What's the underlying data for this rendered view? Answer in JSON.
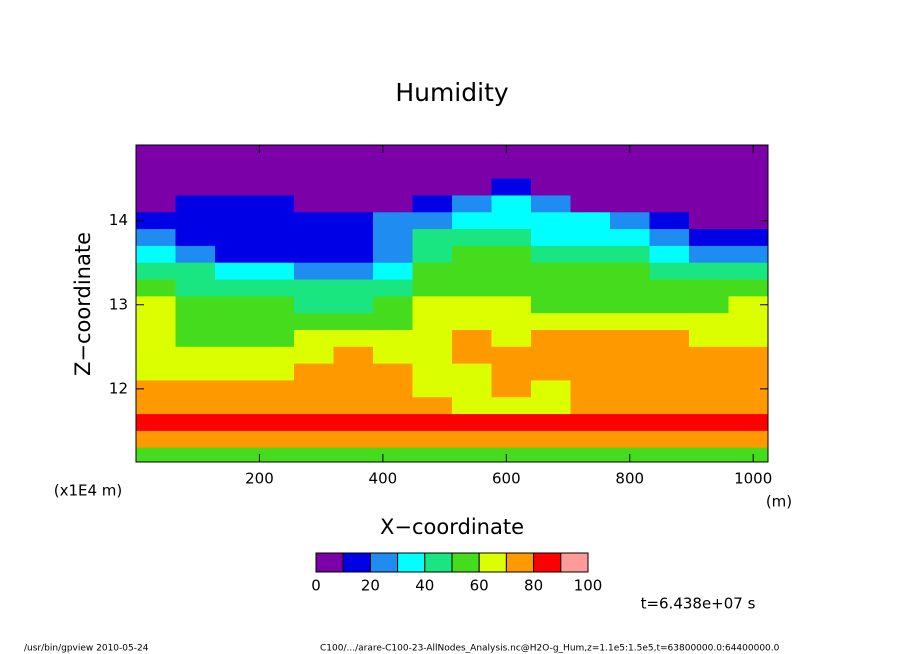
{
  "chart_data": {
    "type": "contour",
    "title": "Humidity",
    "x_label": "X−coordinate",
    "y_label": "Z−coordinate",
    "y_unit": "(x1E4 m)",
    "x_unit": "(m)",
    "time_note": "t=6.438e+07 s",
    "footer_left": "/usr/bin/gpview  2010-05-24",
    "footer_right": "C100/.../arare-C100-23-AllNodes_Analysis.nc@H2O-g_Hum,z=1.1e5:1.5e5,t=63800000.0:64400000.0",
    "xlim": [
      0,
      1024
    ],
    "ylim": [
      11.13,
      14.9
    ],
    "xticks": [
      200,
      400,
      600,
      800,
      1000
    ],
    "yticks": [
      12,
      13,
      14
    ],
    "x": [
      32,
      96,
      160,
      224,
      288,
      352,
      416,
      480,
      544,
      608,
      672,
      736,
      800,
      864,
      928,
      992
    ],
    "y": [
      14.8,
      14.6,
      14.4,
      14.2,
      14.0,
      13.8,
      13.6,
      13.4,
      13.2,
      13.0,
      12.8,
      12.6,
      12.4,
      12.2,
      12.0,
      11.8,
      11.6,
      11.4,
      11.2
    ],
    "z": [
      [
        5,
        5,
        5,
        5,
        15,
        25,
        35,
        45,
        55,
        65,
        65,
        65,
        65,
        65,
        75,
        75,
        85,
        75,
        55
      ],
      [
        5,
        5,
        5,
        15,
        15,
        15,
        25,
        45,
        45,
        55,
        55,
        55,
        65,
        65,
        75,
        75,
        85,
        75,
        55
      ],
      [
        5,
        5,
        5,
        15,
        15,
        15,
        15,
        35,
        45,
        55,
        55,
        55,
        65,
        65,
        75,
        75,
        85,
        75,
        55
      ],
      [
        5,
        5,
        5,
        15,
        15,
        15,
        15,
        35,
        45,
        55,
        55,
        55,
        65,
        65,
        75,
        75,
        85,
        75,
        55
      ],
      [
        5,
        5,
        5,
        5,
        15,
        15,
        15,
        25,
        45,
        45,
        55,
        65,
        65,
        75,
        75,
        75,
        85,
        75,
        55
      ],
      [
        5,
        5,
        5,
        5,
        15,
        15,
        15,
        25,
        45,
        45,
        55,
        65,
        75,
        75,
        75,
        75,
        85,
        75,
        55
      ],
      [
        5,
        5,
        5,
        5,
        25,
        25,
        25,
        35,
        45,
        55,
        55,
        65,
        65,
        75,
        75,
        75,
        85,
        75,
        55
      ],
      [
        5,
        5,
        5,
        15,
        25,
        45,
        45,
        55,
        55,
        65,
        65,
        65,
        65,
        65,
        65,
        75,
        85,
        75,
        55
      ],
      [
        5,
        5,
        5,
        25,
        35,
        45,
        55,
        55,
        55,
        65,
        65,
        75,
        75,
        65,
        65,
        65,
        85,
        75,
        55
      ],
      [
        5,
        5,
        15,
        35,
        35,
        45,
        55,
        55,
        55,
        65,
        65,
        65,
        75,
        75,
        75,
        65,
        85,
        75,
        55
      ],
      [
        5,
        5,
        5,
        25,
        35,
        35,
        45,
        55,
        55,
        55,
        65,
        75,
        75,
        75,
        65,
        65,
        85,
        75,
        55
      ],
      [
        5,
        5,
        5,
        5,
        35,
        35,
        45,
        55,
        55,
        55,
        65,
        75,
        75,
        75,
        75,
        75,
        85,
        75,
        55
      ],
      [
        5,
        5,
        5,
        5,
        25,
        35,
        45,
        55,
        55,
        55,
        65,
        75,
        75,
        75,
        75,
        75,
        85,
        75,
        55
      ],
      [
        5,
        5,
        5,
        5,
        15,
        25,
        35,
        45,
        55,
        55,
        65,
        75,
        75,
        75,
        75,
        75,
        85,
        75,
        55
      ],
      [
        5,
        5,
        5,
        5,
        5,
        15,
        25,
        45,
        55,
        55,
        65,
        65,
        75,
        75,
        75,
        75,
        85,
        75,
        55
      ],
      [
        5,
        5,
        5,
        5,
        5,
        15,
        25,
        45,
        55,
        65,
        65,
        65,
        75,
        75,
        75,
        75,
        85,
        75,
        55
      ]
    ],
    "levels": [
      0,
      10,
      20,
      30,
      40,
      50,
      60,
      70,
      80,
      90,
      100
    ],
    "colors": [
      "#7c00a8",
      "#0000e6",
      "#1e8cf0",
      "#00ffff",
      "#19e680",
      "#46dc1e",
      "#dcff00",
      "#ff9900",
      "#ff0000",
      "#ff9a9a"
    ],
    "colorbar_ticks": [
      0,
      20,
      40,
      60,
      80,
      100
    ]
  }
}
